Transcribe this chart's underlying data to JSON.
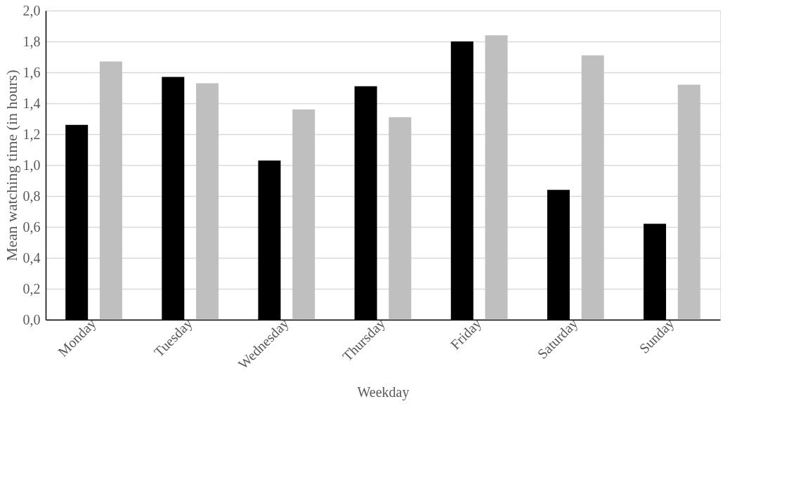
{
  "chart_data": {
    "type": "bar",
    "xlabel": "Weekday",
    "ylabel": "Mean watching time (in hours)",
    "categories": [
      "Monday",
      "Tuesday",
      "Wednesday",
      "Thursday",
      "Friday",
      "Saturday",
      "Sunday"
    ],
    "series": [
      {
        "color": "#000000",
        "values": [
          1.26,
          1.57,
          1.03,
          1.51,
          1.8,
          0.84,
          0.62
        ]
      },
      {
        "color": "#bfbfbf",
        "values": [
          1.67,
          1.53,
          1.36,
          1.31,
          1.84,
          1.71,
          1.52
        ]
      }
    ],
    "ylim": [
      0,
      2.0
    ],
    "yticks": [
      {
        "value": 0,
        "label": "0,0"
      },
      {
        "value": 0.2,
        "label": "0,2"
      },
      {
        "value": 0.4,
        "label": "0,4"
      },
      {
        "value": 0.6,
        "label": "0,6"
      },
      {
        "value": 0.8,
        "label": "0,8"
      },
      {
        "value": 1.0,
        "label": "1,0"
      },
      {
        "value": 1.2,
        "label": "1,2"
      },
      {
        "value": 1.4,
        "label": "1,4"
      },
      {
        "value": 1.6,
        "label": "1,6"
      },
      {
        "value": 1.8,
        "label": "1,8"
      },
      {
        "value": 2.0,
        "label": "2,0"
      }
    ],
    "grid": "y",
    "legend": false
  }
}
